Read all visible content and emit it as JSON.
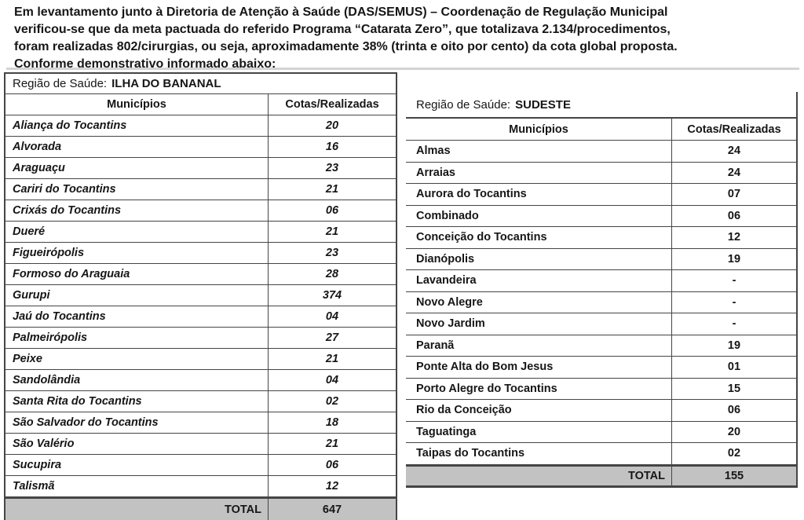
{
  "paragraph": {
    "lines": [
      "Em levantamento junto à Diretoria de Atenção à Saúde (DAS/SEMUS) – Coordenação de Regulação Municipal",
      "verificou-se que da meta pactuada do referido Programa “Catarata Zero”, que totalizava 2.134/procedimentos,",
      "foram realizadas 802/cirurgias, ou seja, aproximadamente 38% (trinta e oito por cento) da cota global proposta.",
      "Conforme demonstrativo informado abaixo:"
    ]
  },
  "left_table": {
    "region_label": "Região de Saúde:",
    "region_name": "ILHA DO BANANAL",
    "columns": {
      "municipios": "Municípios",
      "cotas": "Cotas/Realizadas"
    },
    "rows": [
      {
        "name": "Aliança do Tocantins",
        "value": "20"
      },
      {
        "name": "Alvorada",
        "value": "16"
      },
      {
        "name": "Araguaçu",
        "value": "23"
      },
      {
        "name": "Cariri do Tocantins",
        "value": "21"
      },
      {
        "name": "Crixás do Tocantins",
        "value": "06"
      },
      {
        "name": "Dueré",
        "value": "21"
      },
      {
        "name": "Figueirópolis",
        "value": "23"
      },
      {
        "name": "Formoso do Araguaia",
        "value": "28"
      },
      {
        "name": "Gurupi",
        "value": "374"
      },
      {
        "name": "Jaú do Tocantins",
        "value": "04"
      },
      {
        "name": "Palmeirópolis",
        "value": "27"
      },
      {
        "name": "Peixe",
        "value": "21"
      },
      {
        "name": "Sandolândia",
        "value": "04"
      },
      {
        "name": "Santa Rita do Tocantins",
        "value": "02"
      },
      {
        "name": "São Salvador do Tocantins",
        "value": "18"
      },
      {
        "name": "São Valério",
        "value": "21"
      },
      {
        "name": "Sucupira",
        "value": "06"
      },
      {
        "name": "Talismã",
        "value": "12"
      }
    ],
    "total": {
      "label": "TOTAL",
      "value": "647"
    }
  },
  "right_table": {
    "region_label": "Região de Saúde:",
    "region_name": "SUDESTE",
    "columns": {
      "municipios": "Municípios",
      "cotas": "Cotas/Realizadas"
    },
    "rows": [
      {
        "name": "Almas",
        "value": "24"
      },
      {
        "name": "Arraias",
        "value": "24"
      },
      {
        "name": "Aurora do Tocantins",
        "value": "07"
      },
      {
        "name": "Combinado",
        "value": "06"
      },
      {
        "name": "Conceição do Tocantins",
        "value": "12"
      },
      {
        "name": "Dianópolis",
        "value": "19"
      },
      {
        "name": "Lavandeira",
        "value": "-"
      },
      {
        "name": "Novo Alegre",
        "value": "-"
      },
      {
        "name": "Novo Jardim",
        "value": "-"
      },
      {
        "name": "Paranã",
        "value": "19"
      },
      {
        "name": "Ponte Alta do Bom Jesus",
        "value": "01"
      },
      {
        "name": "Porto Alegre do Tocantins",
        "value": "15"
      },
      {
        "name": "Rio da Conceição",
        "value": "06"
      },
      {
        "name": "Taguatinga",
        "value": "20"
      },
      {
        "name": "Taipas do Tocantins",
        "value": "02"
      }
    ],
    "total": {
      "label": "TOTAL",
      "value": "155"
    }
  },
  "colors": {
    "total_row_bg": "#c2c2c2",
    "table_border": "#454545",
    "text": "#161616"
  }
}
